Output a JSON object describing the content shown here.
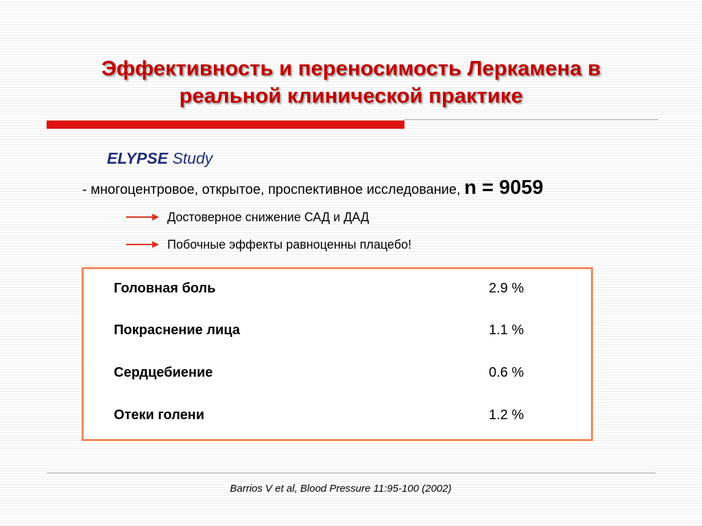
{
  "slide": {
    "title_line1": "Эффективность и переносимость Леркамена в",
    "title_line2": "реальной клинической практике",
    "accent_color": "#c00000",
    "rule_color": "#e01010",
    "study": {
      "name": "ELYPSE",
      "word": "Study"
    },
    "design": {
      "text": "- многоцентровое, открытое, проспективное исследование,",
      "n_label": "n = 9059"
    },
    "findings": [
      {
        "icon": "arrow-right-icon",
        "text": "Достоверное снижение САД и ДАД"
      },
      {
        "icon": "arrow-right-icon",
        "text": "Побочные эффекты равноценны плацебо!"
      }
    ],
    "side_effects": {
      "border_color": "#f08a5d",
      "rows": [
        {
          "name": "Головная боль",
          "value": "2.9 %"
        },
        {
          "name": "Покраснение лица",
          "value": "1.1 %"
        },
        {
          "name": "Сердцебиение",
          "value": "0.6 %"
        },
        {
          "name": "Отеки голени",
          "value": "1.2 %"
        }
      ]
    },
    "citation": "Barrios V et al, Blood Pressure 11:95-100 (2002)"
  }
}
